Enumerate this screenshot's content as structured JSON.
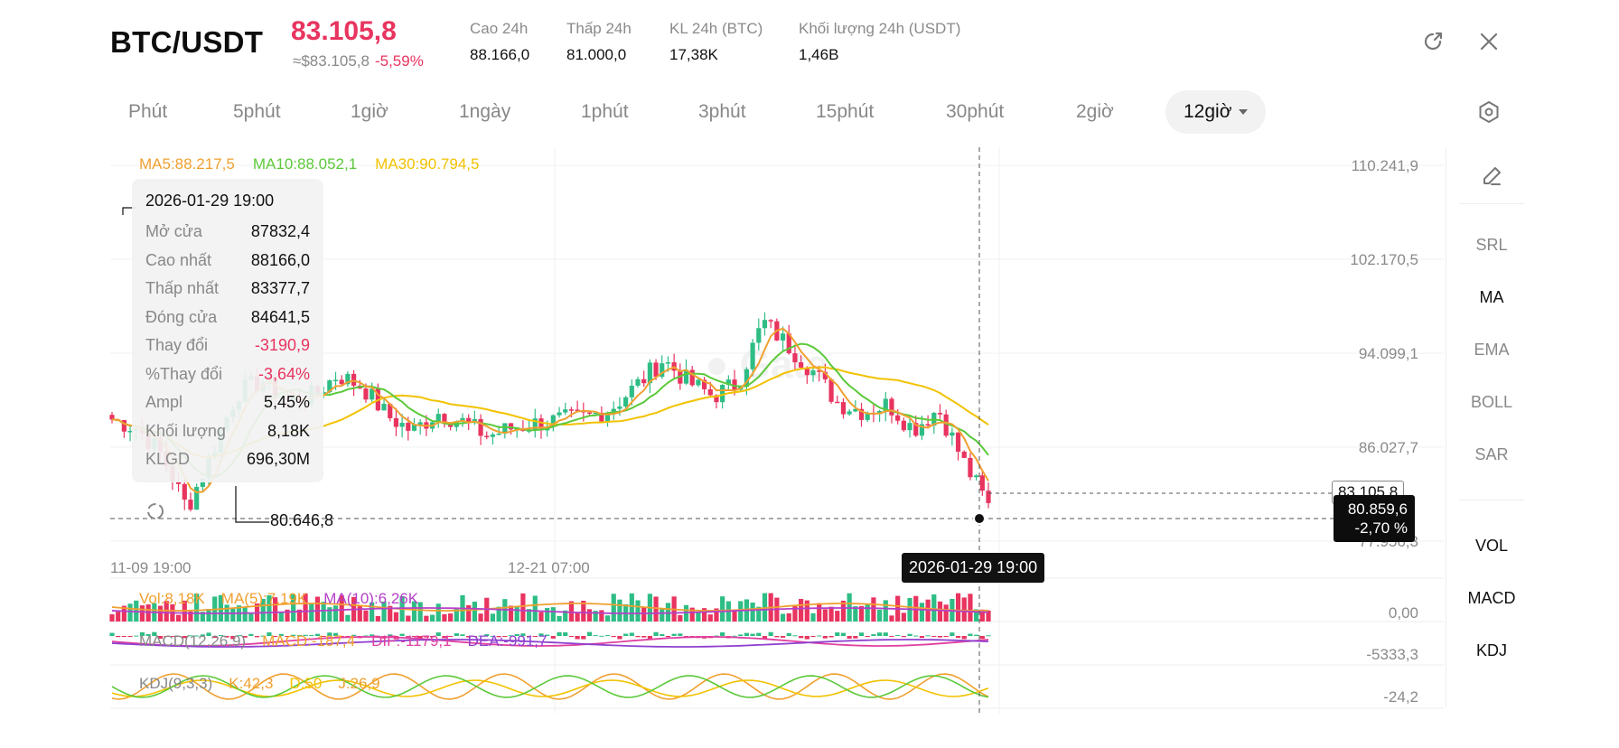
{
  "header": {
    "pair": "BTC/USDT",
    "price": "83.105,8",
    "approx_usd": "≈$83.105,8",
    "change_pct": "-5,59%",
    "stats": [
      {
        "label": "Cao 24h",
        "value": "88.166,0"
      },
      {
        "label": "Thấp 24h",
        "value": "81.000,0"
      },
      {
        "label": "KL 24h (BTC)",
        "value": "17,38K"
      },
      {
        "label": "Khối lượng 24h (USDT)",
        "value": "1,46B"
      }
    ],
    "icons": [
      "external-link-icon",
      "close-icon"
    ]
  },
  "timeframes": {
    "items": [
      "Phút",
      "5phút",
      "1giờ",
      "1ngày",
      "1phút",
      "3phút",
      "15phút",
      "30phút",
      "2giờ",
      "12giờ"
    ],
    "active": "12giờ",
    "settings_icon": "hexagon-settings-icon"
  },
  "ma_legend": {
    "ma5": "MA5:88.217,5",
    "ma10": "MA10:88.052,1",
    "ma30": "MA30:90.794,5"
  },
  "tooltip": {
    "date": "2026-01-29 19:00",
    "rows": [
      {
        "k": "Mở cửa",
        "v": "87832,4"
      },
      {
        "k": "Cao nhất",
        "v": "88166,0"
      },
      {
        "k": "Thấp nhất",
        "v": "83377,7"
      },
      {
        "k": "Đóng cửa",
        "v": "84641,5"
      },
      {
        "k": "Thay đổi",
        "v": "-3190,9"
      },
      {
        "k": "%Thay đổi",
        "v": "-3,64%"
      },
      {
        "k": "Ampl",
        "v": "5,45%"
      },
      {
        "k": "Khối lượng",
        "v": "8,18K"
      },
      {
        "k": "KLGD",
        "v": "696,30M"
      }
    ]
  },
  "price_axis": [
    "110.241,9",
    "102.170,5",
    "94.099,1",
    "86.027,7",
    "77.956,3"
  ],
  "x_axis": [
    "11-09 19:00",
    "12-21 07:00"
  ],
  "crosshair": {
    "date": "2026-01-29 19:00",
    "price": "80.859,6",
    "pct": "-2,70 %"
  },
  "current_price_tag": "83.105,8",
  "low_marker": "80.646,8",
  "volume_legend": {
    "vol": "Vol:8,18K",
    "ma5": "MA(5):7,19K",
    "ma10": "MA(10):6,26K"
  },
  "volume_axis": "0,00",
  "macd_legend": {
    "name": "MACD(12,26,9)",
    "macd": "MACD:-187,4",
    "dif": "DIF:-1179,1",
    "dea": "DEA:-991,7"
  },
  "macd_axis": "-5333,3",
  "kdj_legend": {
    "name": "KDJ(9,3,3)",
    "k": "K:42,3",
    "d": "D:50",
    "j": "J:26,9"
  },
  "kdj_axis": "-24,2",
  "right_panel": {
    "pencil_icon": "pencil-icon",
    "items": [
      "SRL",
      "MA",
      "EMA",
      "BOLL",
      "SAR",
      "VOL",
      "MACD",
      "KDJ"
    ],
    "active": [
      "MA",
      "VOL",
      "MACD",
      "KDJ"
    ]
  },
  "colors": {
    "up": "#2ebd85",
    "down": "#e8345f",
    "ma5": "#f0a030",
    "ma10": "#5cc93a",
    "ma30": "#f2c200",
    "ma_vol10": "#b540c9",
    "macd_dif": "#e040a0",
    "macd_dea": "#9040d0"
  },
  "chart_data": {
    "type": "candlestick",
    "title": "",
    "price_range": [
      77956.3,
      110241.9
    ],
    "closes_approx": [
      88217,
      87500,
      85200,
      80646.8,
      85500,
      90500,
      91500,
      89800,
      90200,
      92000,
      91000,
      88500,
      87200,
      88800,
      88000,
      86800,
      87500,
      87900,
      88200,
      88400,
      89300,
      91200,
      93300,
      91400,
      90200,
      91300,
      96500,
      94500,
      92300,
      89600,
      88900,
      89500,
      87400,
      89100,
      84641.5,
      80859.6
    ]
  }
}
